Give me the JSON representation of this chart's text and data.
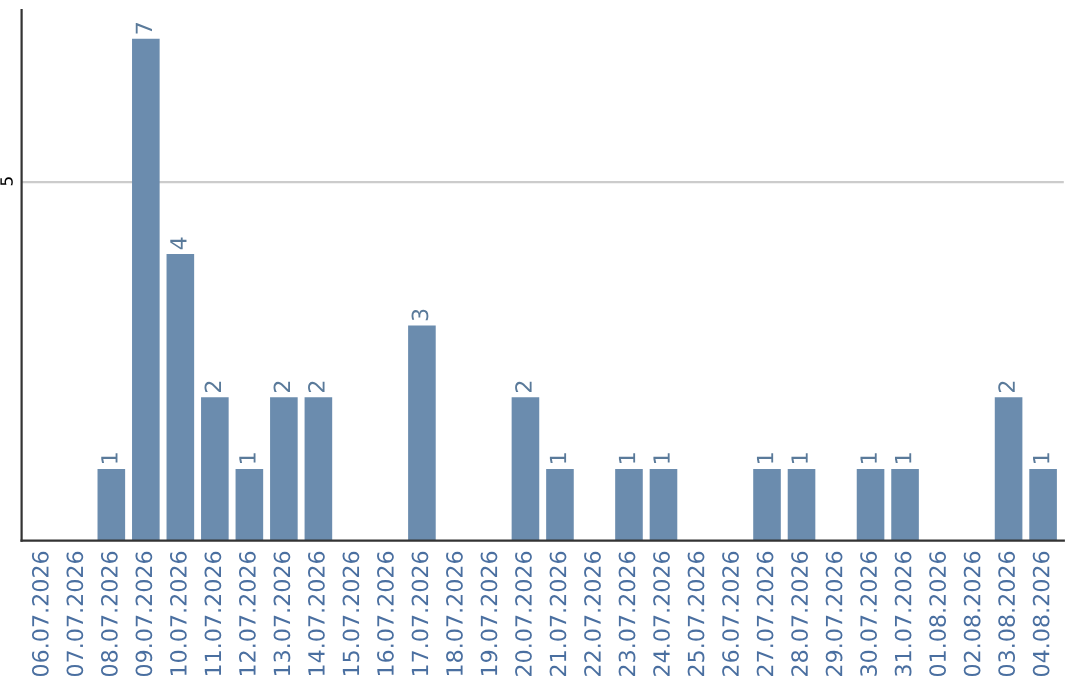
{
  "chart_data": {
    "type": "bar",
    "categories": [
      "06.07.2026",
      "07.07.2026",
      "08.07.2026",
      "09.07.2026",
      "10.07.2026",
      "11.07.2026",
      "12.07.2026",
      "13.07.2026",
      "14.07.2026",
      "15.07.2026",
      "16.07.2026",
      "17.07.2026",
      "18.07.2026",
      "19.07.2026",
      "20.07.2026",
      "21.07.2026",
      "22.07.2026",
      "23.07.2026",
      "24.07.2026",
      "25.07.2026",
      "26.07.2026",
      "27.07.2026",
      "28.07.2026",
      "29.07.2026",
      "30.07.2026",
      "31.07.2026",
      "01.08.2026",
      "02.08.2026",
      "03.08.2026",
      "04.08.2026"
    ],
    "values": [
      0,
      0,
      1,
      7,
      4,
      2,
      1,
      2,
      2,
      0,
      0,
      3,
      0,
      0,
      2,
      1,
      0,
      1,
      1,
      0,
      0,
      1,
      1,
      0,
      1,
      1,
      0,
      0,
      2,
      1
    ],
    "value_labels": [
      null,
      null,
      "1",
      "7",
      "4",
      "2",
      "1",
      "2",
      "2",
      null,
      null,
      "3",
      null,
      null,
      "2",
      "1",
      null,
      "1",
      "1",
      null,
      null,
      "1",
      "1",
      null,
      "1",
      "1",
      null,
      null,
      "2",
      "1"
    ],
    "color": "#6b8cae",
    "ylim": [
      0,
      7.4
    ],
    "yticks": [
      5
    ],
    "grid": "y"
  }
}
